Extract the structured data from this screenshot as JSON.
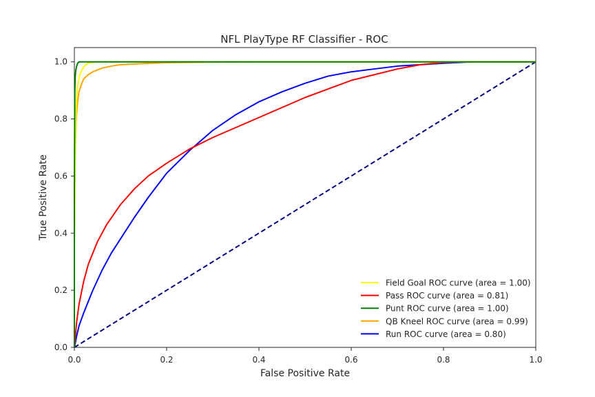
{
  "chart_data": {
    "type": "line",
    "title": "NFL PlayType RF Classifier - ROC",
    "xlabel": "False Positive Rate",
    "ylabel": "True Positive Rate",
    "xlim": [
      0.0,
      1.0
    ],
    "ylim": [
      0.0,
      1.05
    ],
    "xticks": [
      "0.0",
      "0.2",
      "0.4",
      "0.6",
      "0.8",
      "1.0"
    ],
    "yticks": [
      "0.0",
      "0.2",
      "0.4",
      "0.6",
      "0.8",
      "1.0"
    ],
    "grid": false,
    "legend_position": "lower right",
    "series": [
      {
        "name": "Field Goal ROC curve (area = 1.00)",
        "color": "#ffff00",
        "x": [
          0.0,
          0.0,
          0.002,
          0.004,
          0.006,
          0.009,
          0.012,
          0.016,
          0.02,
          0.025,
          0.03,
          0.04,
          0.05,
          1.0
        ],
        "y": [
          0.0,
          0.4,
          0.72,
          0.84,
          0.9,
          0.935,
          0.955,
          0.97,
          0.982,
          0.99,
          0.995,
          0.998,
          1.0,
          1.0
        ]
      },
      {
        "name": "Pass ROC curve (area = 0.81)",
        "color": "#ff0000",
        "x": [
          0.0,
          0.005,
          0.01,
          0.02,
          0.03,
          0.04,
          0.05,
          0.07,
          0.1,
          0.13,
          0.16,
          0.2,
          0.25,
          0.3,
          0.35,
          0.4,
          0.45,
          0.5,
          0.55,
          0.6,
          0.65,
          0.7,
          0.75,
          0.8,
          0.85,
          0.9,
          1.0
        ],
        "y": [
          0.0,
          0.09,
          0.15,
          0.23,
          0.29,
          0.33,
          0.37,
          0.43,
          0.5,
          0.555,
          0.6,
          0.645,
          0.695,
          0.735,
          0.77,
          0.805,
          0.84,
          0.875,
          0.905,
          0.935,
          0.955,
          0.975,
          0.99,
          0.998,
          1.0,
          1.0,
          1.0
        ]
      },
      {
        "name": "Punt ROC curve (area = 1.00)",
        "color": "#007f00",
        "x": [
          0.0,
          0.0,
          0.001,
          0.002,
          0.003,
          0.005,
          0.007,
          0.01,
          0.015,
          1.0
        ],
        "y": [
          0.0,
          0.55,
          0.9,
          0.95,
          0.97,
          0.985,
          0.995,
          1.0,
          1.0,
          1.0
        ]
      },
      {
        "name": "QB Kneel ROC curve (area = 0.99)",
        "color": "#ffa500",
        "x": [
          0.0,
          0.0,
          0.002,
          0.004,
          0.007,
          0.01,
          0.015,
          0.02,
          0.03,
          0.04,
          0.06,
          0.08,
          0.1,
          0.15,
          0.2,
          0.3,
          0.4,
          0.6,
          1.0
        ],
        "y": [
          0.0,
          0.35,
          0.7,
          0.8,
          0.86,
          0.895,
          0.92,
          0.94,
          0.955,
          0.965,
          0.978,
          0.985,
          0.99,
          0.994,
          0.997,
          0.999,
          1.0,
          1.0,
          1.0
        ]
      },
      {
        "name": "Run ROC curve (area = 0.80)",
        "color": "#0000ff",
        "x": [
          0.0,
          0.005,
          0.01,
          0.02,
          0.04,
          0.06,
          0.08,
          0.1,
          0.13,
          0.16,
          0.2,
          0.25,
          0.3,
          0.35,
          0.4,
          0.45,
          0.5,
          0.55,
          0.6,
          0.65,
          0.7,
          0.75,
          0.8,
          0.85,
          0.9,
          1.0
        ],
        "y": [
          0.0,
          0.04,
          0.075,
          0.12,
          0.2,
          0.27,
          0.33,
          0.38,
          0.455,
          0.525,
          0.61,
          0.69,
          0.76,
          0.815,
          0.86,
          0.895,
          0.925,
          0.95,
          0.965,
          0.975,
          0.985,
          0.99,
          0.995,
          0.999,
          1.0,
          1.0
        ]
      }
    ],
    "reference_line": {
      "color": "#000080",
      "style": "dashed",
      "x": [
        0.0,
        1.0
      ],
      "y": [
        0.0,
        1.0
      ]
    }
  }
}
